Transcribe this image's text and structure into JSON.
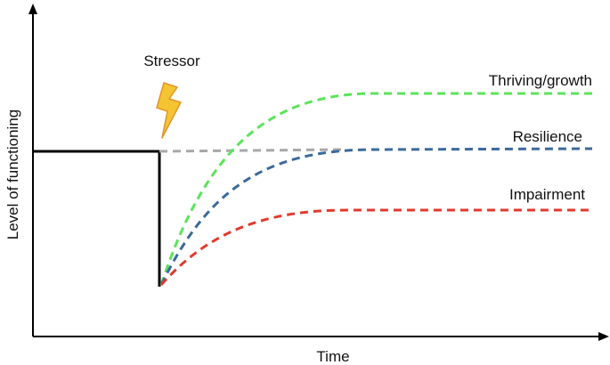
{
  "title": "",
  "xlabel": "Time",
  "ylabel": "Level of functioning",
  "stressor_label": "Stressor",
  "stressor_icon": "lightning-bolt-icon",
  "outcomes": [
    {
      "key": "thriving",
      "label": "Thriving/growth",
      "color": "#5be35a"
    },
    {
      "key": "resilience",
      "label": "Resilience",
      "color": "#3b6a9a"
    },
    {
      "key": "impairment",
      "label": "Impairment",
      "color": "#e03a2e"
    }
  ],
  "colors": {
    "axis": "#000000",
    "baseline": "#000000",
    "reference": "#a8a8a8",
    "bolt_fill": "#f5c433",
    "bolt_stroke": "#e0962a"
  }
}
